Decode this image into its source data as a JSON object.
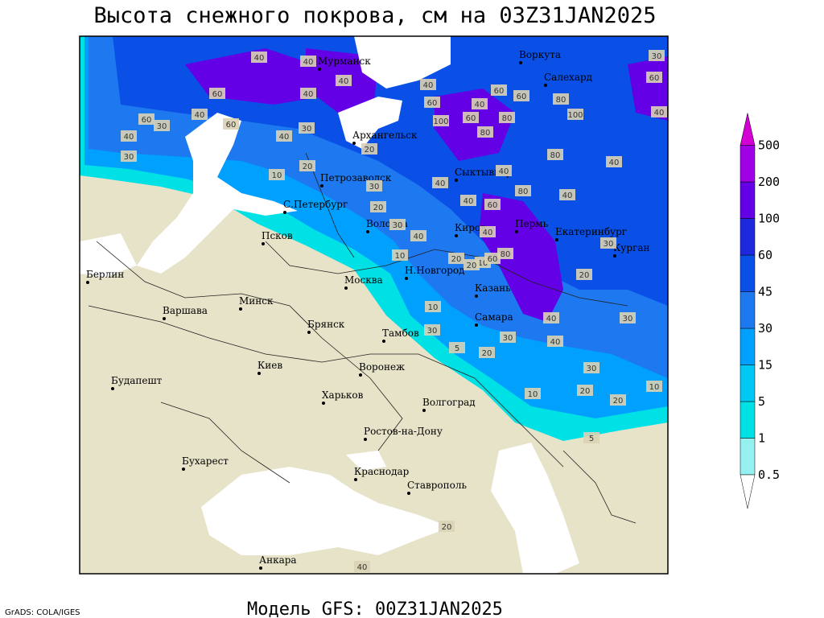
{
  "title": "Высота снежного покрова, см на 03Z31JAN2025",
  "footer": "Модель GFS: 00Z31JAN2025",
  "credit": "GrADS: COLA/IGES",
  "legend": {
    "levels": [
      0.5,
      1,
      5,
      15,
      30,
      45,
      60,
      100,
      200,
      500
    ],
    "colors": [
      "#ffffff",
      "#96f0f0",
      "#00e1e6",
      "#00c8f5",
      "#00a0ff",
      "#1e78f0",
      "#0a50e6",
      "#1e28dc",
      "#6400e6",
      "#a000e6",
      "#d200d2"
    ]
  },
  "cities": [
    "Мурманск",
    "Воркута",
    "Салехард",
    "Архангельск",
    "Петрозаводск",
    "Сыктывкар",
    "С.Петербург",
    "Вологда",
    "Киров",
    "Пермь",
    "Екатеринбург",
    "Курган",
    "Псков",
    "Берлин",
    "Н.Новгород",
    "Москва",
    "Казань",
    "Минск",
    "Варшава",
    "Самара",
    "Брянск",
    "Тамбов",
    "Киев",
    "Воронеж",
    "Будапешт",
    "Харьков",
    "Волгоград",
    "Ростов-на-Дону",
    "Бухарест",
    "Краснодар",
    "Ставрополь",
    "Анкара"
  ],
  "contour_labels": [
    40,
    40,
    40,
    40,
    60,
    60,
    30,
    40,
    60,
    30,
    40,
    40,
    30,
    20,
    10,
    20,
    40,
    60,
    100,
    60,
    80,
    60,
    80,
    100,
    40,
    40,
    80,
    30,
    60,
    40,
    60,
    80,
    40,
    40,
    80,
    60,
    40,
    40,
    30,
    40,
    30,
    20,
    10,
    40,
    20,
    10,
    20,
    60,
    80,
    20,
    30,
    40,
    30,
    10,
    30,
    5,
    20,
    30,
    30,
    20,
    10,
    20,
    10,
    5,
    20,
    40,
    40
  ]
}
